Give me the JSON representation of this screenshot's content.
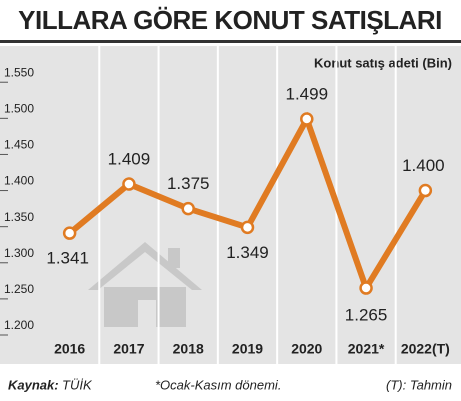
{
  "chart_data": {
    "type": "line",
    "title": "YILLARA GÖRE KONUT SATIŞLARI",
    "subtitle": "Konut satış adeti (Bin)",
    "categories": [
      "2016",
      "2017",
      "2018",
      "2019",
      "2020",
      "2021*",
      "2022(T)"
    ],
    "series": [
      {
        "color": "#e07b22",
        "values": [
          1341,
          1409,
          1375,
          1349,
          1499,
          1265,
          1400
        ],
        "value_labels": [
          "1.341",
          "1.409",
          "1.375",
          "1.349",
          "1.499",
          "1.265",
          "1.400"
        ]
      }
    ],
    "ylim": [
      1200,
      1560
    ],
    "yticks": [
      {
        "value": 1200,
        "label": "1.200"
      },
      {
        "value": 1250,
        "label": "1.250"
      },
      {
        "value": 1300,
        "label": "1.300"
      },
      {
        "value": 1350,
        "label": "1.350"
      },
      {
        "value": 1400,
        "label": "1.400"
      },
      {
        "value": 1450,
        "label": "1.450"
      },
      {
        "value": 1500,
        "label": "1.500"
      },
      {
        "value": 1550,
        "label": "1.550"
      }
    ],
    "source_label": "Kaynak:",
    "source": "TÜİK",
    "note": "*Ocak-Kasım dönemi.",
    "forecast_note": "(T): Tahmin"
  }
}
